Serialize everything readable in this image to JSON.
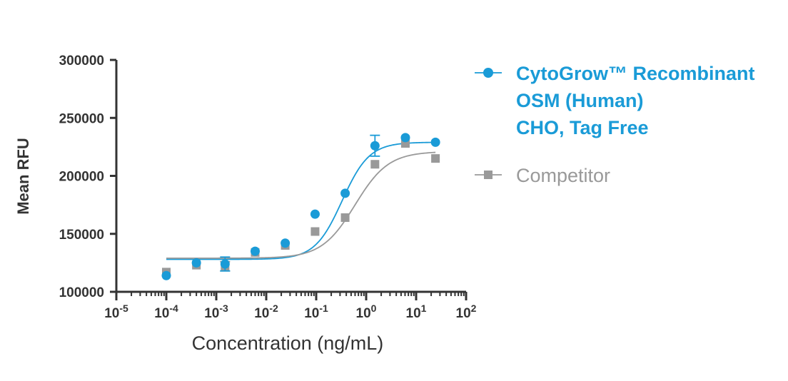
{
  "chart_data": {
    "type": "scatter",
    "xlabel": "Concentration (ng/mL)",
    "ylabel": "Mean RFU",
    "x_scale": "log10",
    "xlim": [
      1e-05,
      100
    ],
    "ylim": [
      100000,
      300000
    ],
    "x_ticks": [
      {
        "base": "10",
        "exp": "-5"
      },
      {
        "base": "10",
        "exp": "-4"
      },
      {
        "base": "10",
        "exp": "-3"
      },
      {
        "base": "10",
        "exp": "-2"
      },
      {
        "base": "10",
        "exp": "-1"
      },
      {
        "base": "10",
        "exp": "0"
      },
      {
        "base": "10",
        "exp": "1"
      },
      {
        "base": "10",
        "exp": "2"
      }
    ],
    "y_ticks": [
      "100000",
      "150000",
      "200000",
      "250000",
      "300000"
    ],
    "legend_position": "right",
    "series": [
      {
        "name_lines": [
          "CytoGrow™ Recombinant",
          "OSM (Human)",
          "CHO, Tag Free"
        ],
        "color": "#1a9bd7",
        "marker": "circle",
        "x": [
          0.0001,
          0.0004,
          0.0015,
          0.006,
          0.024,
          0.095,
          0.38,
          1.5,
          6.1,
          24.4
        ],
        "y": [
          114000,
          125000,
          124000,
          135000,
          142000,
          167000,
          185000,
          226000,
          233000,
          229000
        ],
        "err": [
          0,
          0,
          6000,
          0,
          0,
          0,
          0,
          9000,
          0,
          0
        ],
        "fit": {
          "bottom": 128000,
          "top": 229000,
          "ec50": 0.33,
          "hill": 1.6
        }
      },
      {
        "name_lines": [
          "Competitor"
        ],
        "color": "#999999",
        "marker": "square",
        "x": [
          0.0001,
          0.0004,
          0.0015,
          0.006,
          0.024,
          0.095,
          0.38,
          1.5,
          6.1,
          24.4
        ],
        "y": [
          117000,
          123000,
          122000,
          134000,
          140000,
          152000,
          164000,
          210000,
          228000,
          215000
        ],
        "err": [
          0,
          0,
          4000,
          0,
          0,
          0,
          0,
          0,
          0,
          0
        ],
        "fit": {
          "bottom": 129000,
          "top": 221000,
          "ec50": 0.6,
          "hill": 1.3
        }
      }
    ]
  }
}
